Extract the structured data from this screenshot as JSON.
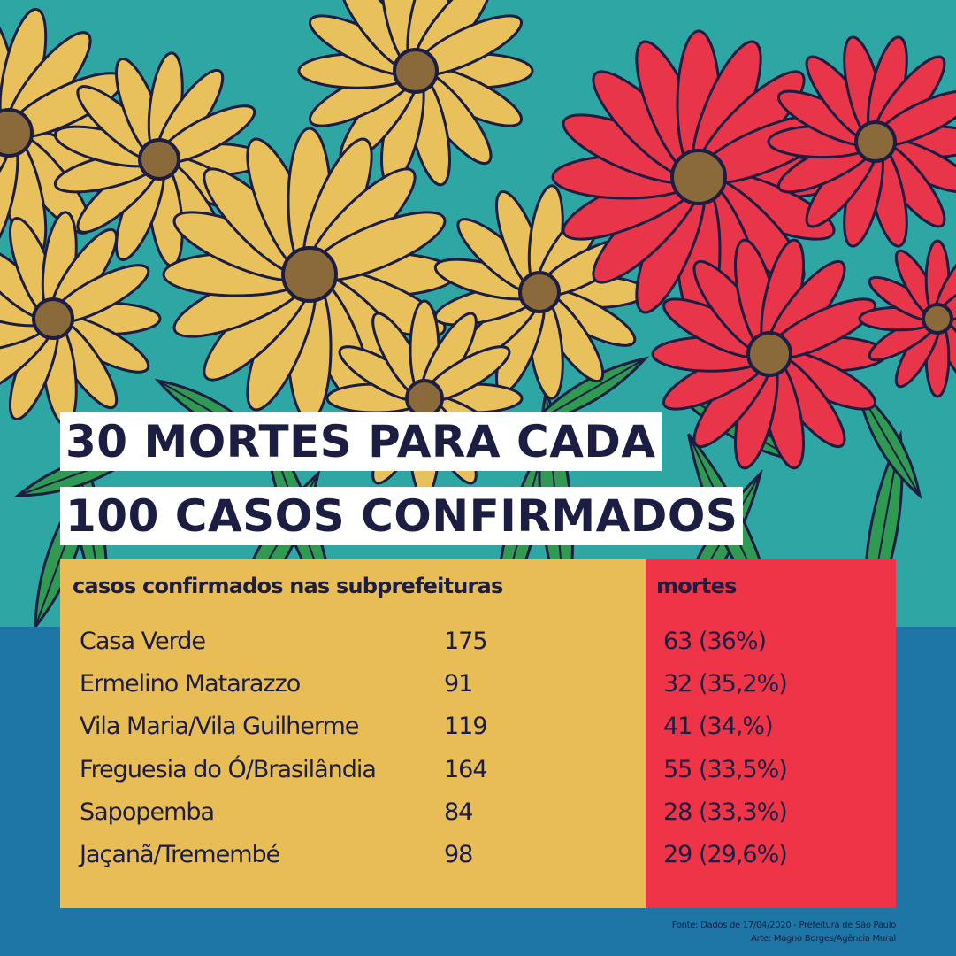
{
  "colors": {
    "teal": "#2ea6a4",
    "blue": "#1e76a6",
    "yellow": "#e8bd56",
    "red": "#ee3446",
    "navy": "#1c1d43",
    "petal_yellow": "#e8c15c",
    "petal_red": "#e8354a",
    "leaf_green": "#2f9a52"
  },
  "title": {
    "line1": "30 MORTES PARA CADA",
    "line2": "100 CASOS CONFIRMADOS"
  },
  "table": {
    "header_left": "casos confirmados  nas subprefeituras",
    "header_right": "mortes"
  },
  "chart_data": {
    "type": "table",
    "columns": [
      "casos confirmados  nas subprefeituras",
      "mortes"
    ],
    "rows": [
      {
        "name": "Casa Verde",
        "cases": "175",
        "deaths": "63 (36%)"
      },
      {
        "name": "Ermelino Matarazzo",
        "cases": "91",
        "deaths": "32 (35,2%)"
      },
      {
        "name": "Vila Maria/Vila Guilherme",
        "cases": "119",
        "deaths": "41 (34,%)"
      },
      {
        "name": "Freguesia do Ó/Brasilândia",
        "cases": "164",
        "deaths": "55 (33,5%)"
      },
      {
        "name": "Sapopemba",
        "cases": "84",
        "deaths": "28 (33,3%)"
      },
      {
        "name": "Jaçanã/Tremembé",
        "cases": "98",
        "deaths": "29 (29,6%)"
      }
    ]
  },
  "footer": {
    "source": "Fonte: Dados de 17/04/2020 - Prefeitura de São Paulo",
    "credit": "Arte: Magno Borges/Agência Mural"
  },
  "decoration": {
    "illustration": [
      "flower-icon",
      "leaf-icon"
    ]
  }
}
